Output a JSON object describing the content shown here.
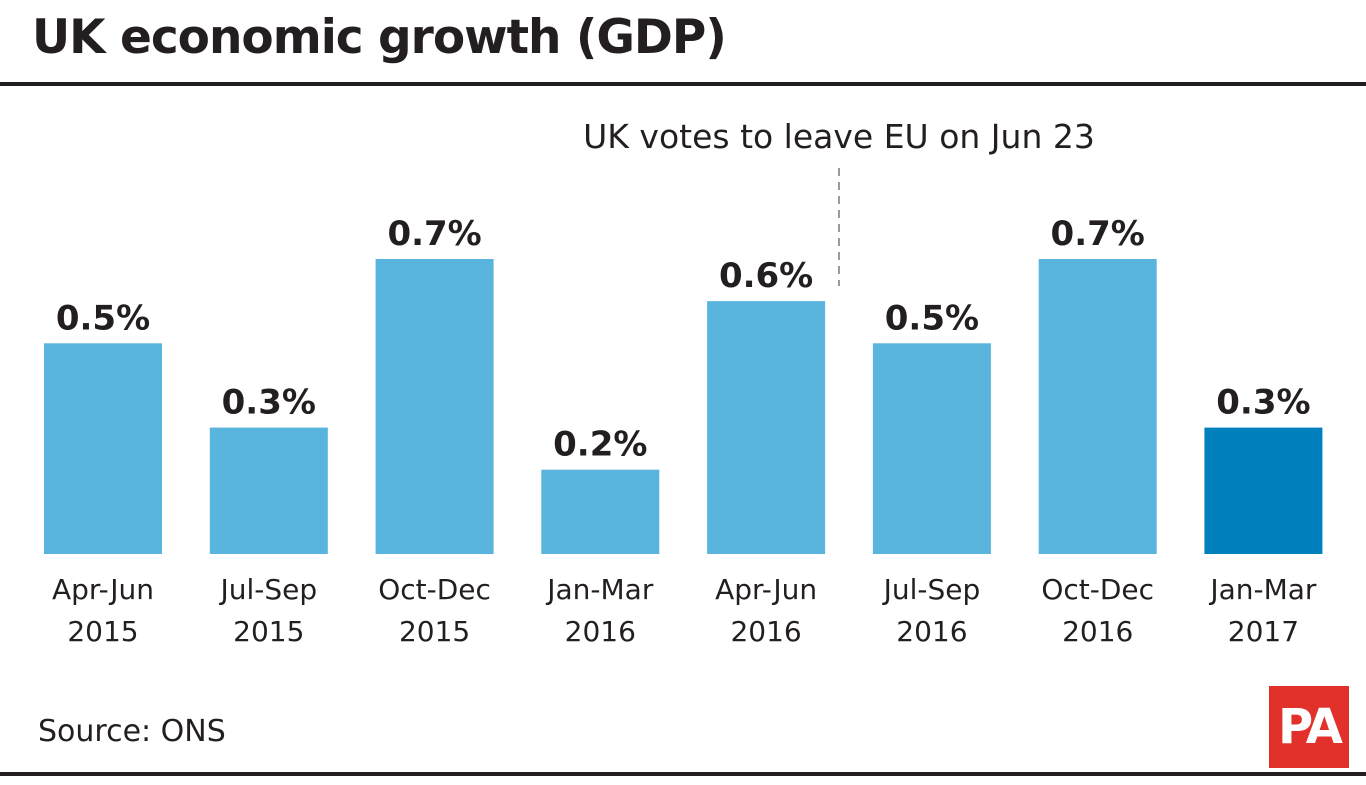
{
  "chart_data": {
    "type": "bar",
    "title": "UK economic growth (GDP)",
    "categories": [
      [
        "Apr-Jun",
        "2015"
      ],
      [
        "Jul-Sep",
        "2015"
      ],
      [
        "Oct-Dec",
        "2015"
      ],
      [
        "Jan-Mar",
        "2016"
      ],
      [
        "Apr-Jun",
        "2016"
      ],
      [
        "Jul-Sep",
        "2016"
      ],
      [
        "Oct-Dec",
        "2016"
      ],
      [
        "Jan-Mar",
        "2017"
      ]
    ],
    "values": [
      0.5,
      0.3,
      0.7,
      0.2,
      0.6,
      0.5,
      0.7,
      0.3
    ],
    "value_labels": [
      "0.5%",
      "0.3%",
      "0.7%",
      "0.2%",
      "0.6%",
      "0.5%",
      "0.7%",
      "0.3%"
    ],
    "unit": "%",
    "highlight_index": 7,
    "ylim": [
      0,
      0.7
    ],
    "annotation": {
      "text": "UK votes to leave EU on Jun 23",
      "between_categories": [
        4,
        5
      ]
    },
    "colors": {
      "bar": "#59b4de",
      "highlight": "#0081bd",
      "text": "#231f20"
    },
    "xlabel": "",
    "ylabel": ""
  },
  "source": "Source: ONS",
  "logo": {
    "text": "PA",
    "color": "#e2312a"
  }
}
